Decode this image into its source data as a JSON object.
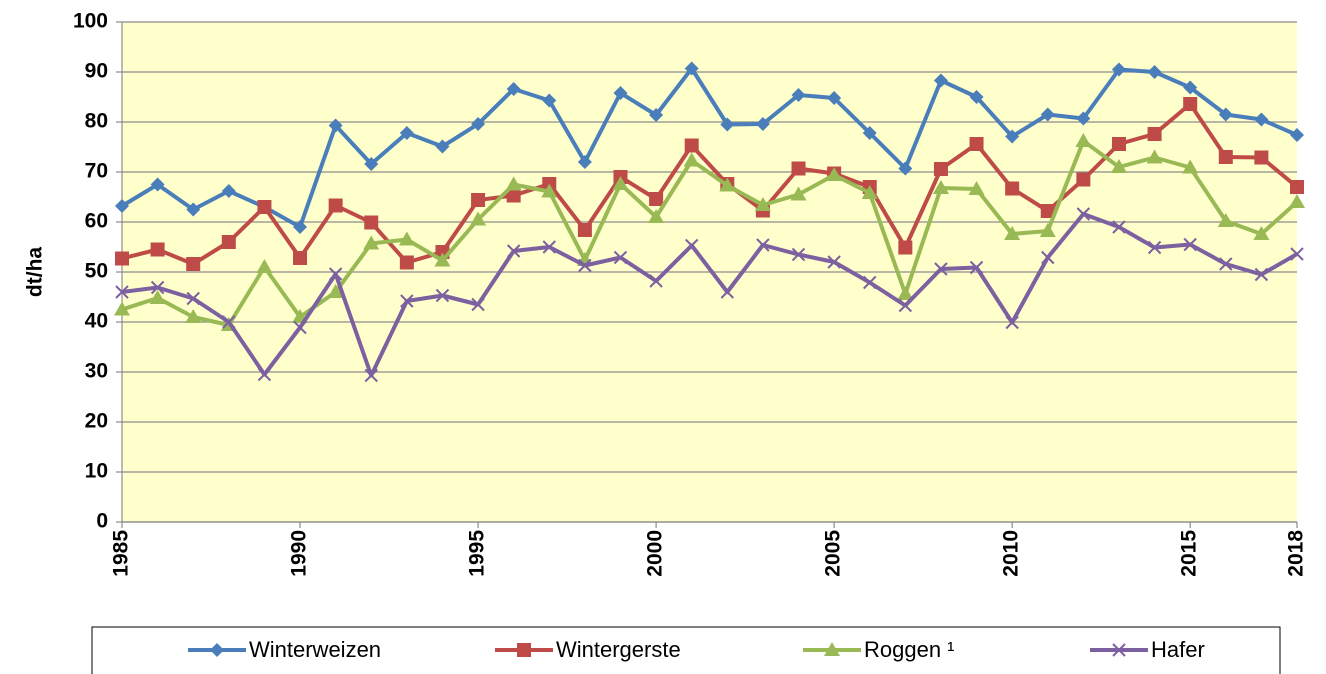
{
  "chart_data": {
    "type": "line",
    "y_label": "dt/ha",
    "x": [
      1985,
      1986,
      1987,
      1988,
      1989,
      1990,
      1991,
      1992,
      1993,
      1994,
      1995,
      1996,
      1997,
      1998,
      1999,
      2000,
      2001,
      2002,
      2003,
      2004,
      2005,
      2006,
      2007,
      2008,
      2009,
      2010,
      2011,
      2012,
      2013,
      2014,
      2015,
      2016,
      2017,
      2018
    ],
    "xlim": [
      1985,
      2018
    ],
    "xticks": [
      1985,
      1990,
      1995,
      2000,
      2005,
      2010,
      2015,
      2018
    ],
    "ylim": [
      0,
      100
    ],
    "yticks": [
      0,
      10,
      20,
      30,
      40,
      50,
      60,
      70,
      80,
      90,
      100
    ],
    "grid": true,
    "legend": "bottom",
    "series": [
      {
        "name": "Winterweizen",
        "color": "#4a7ebb",
        "marker": "diamond",
        "values": [
          63.2,
          67.5,
          62.5,
          66.2,
          63.0,
          59.0,
          79.3,
          71.6,
          77.8,
          75.1,
          79.6,
          86.6,
          84.3,
          72.0,
          85.8,
          81.4,
          90.7,
          79.5,
          79.6,
          85.4,
          84.8,
          77.8,
          70.7,
          88.3,
          85.0,
          77.1,
          81.5,
          80.7,
          90.5,
          90.0,
          86.9,
          81.5,
          80.5,
          77.4
        ]
      },
      {
        "name": "Wintergerste",
        "color": "#be4b48",
        "marker": "square",
        "values": [
          52.7,
          54.5,
          51.6,
          56.0,
          63.0,
          52.8,
          63.3,
          59.9,
          51.9,
          54.0,
          64.4,
          65.3,
          67.6,
          58.4,
          69.0,
          64.6,
          75.3,
          67.6,
          62.3,
          70.7,
          69.7,
          67.0,
          54.9,
          70.6,
          75.6,
          66.7,
          62.2,
          68.5,
          75.6,
          77.6,
          83.6,
          73.0,
          72.9,
          67.0
        ]
      },
      {
        "name": "Roggen ¹",
        "color": "#98b954",
        "marker": "triangle",
        "values": [
          42.5,
          44.8,
          41.0,
          39.4,
          51.0,
          41.0,
          46.0,
          55.7,
          56.5,
          52.3,
          60.5,
          67.5,
          66.1,
          52.4,
          67.6,
          61.0,
          72.3,
          67.3,
          63.4,
          65.5,
          69.4,
          65.8,
          45.6,
          66.8,
          66.6,
          57.6,
          58.2,
          76.2,
          71.0,
          72.9,
          70.9,
          60.2,
          57.6,
          64.0
        ]
      },
      {
        "name": "Hafer",
        "color": "#7d60a0",
        "marker": "x",
        "values": [
          46.0,
          46.9,
          44.7,
          40.0,
          29.5,
          38.9,
          49.6,
          29.3,
          44.2,
          45.3,
          43.5,
          54.2,
          55.0,
          51.3,
          52.9,
          48.2,
          55.3,
          46.0,
          55.4,
          53.5,
          52.0,
          47.9,
          43.3,
          50.6,
          50.9,
          39.9,
          52.9,
          61.6,
          59.0,
          54.9,
          55.5,
          51.6,
          49.5,
          53.6
        ]
      }
    ]
  }
}
